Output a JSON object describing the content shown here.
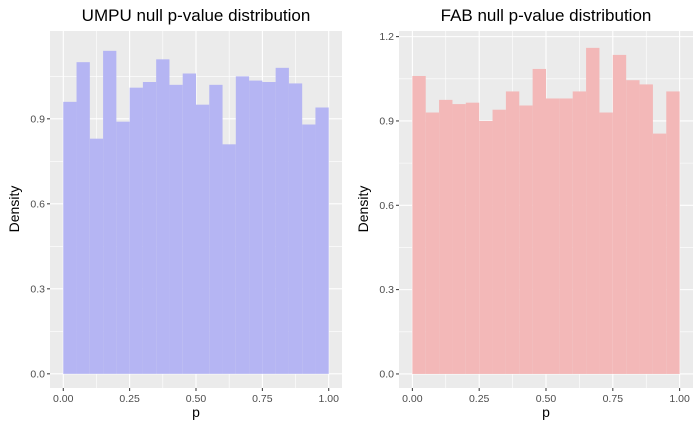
{
  "chart_data": [
    {
      "type": "bar",
      "subtype": "histogram",
      "title": "UMPU null p-value distribution",
      "xlabel": "p",
      "ylabel": "Density",
      "xlim": [
        -0.05,
        1.05
      ],
      "ylim": [
        -0.05,
        1.21
      ],
      "x_ticks": [
        "0.00",
        "0.25",
        "0.50",
        "0.75",
        "1.00"
      ],
      "y_ticks": [
        "0.0",
        "0.3",
        "0.6",
        "0.9"
      ],
      "bin_width": 0.05,
      "bins_start": 0.0,
      "values": [
        0.96,
        1.1,
        0.83,
        1.14,
        0.89,
        1.01,
        1.03,
        1.11,
        1.02,
        1.06,
        0.95,
        1.02,
        0.81,
        1.05,
        1.035,
        1.03,
        1.08,
        1.025,
        0.88,
        0.94
      ],
      "fill_color": "#b5b5f3",
      "panel_bg": "#ebebeb",
      "grid": true
    },
    {
      "type": "bar",
      "subtype": "histogram",
      "title": "FAB null p-value distribution",
      "xlabel": "p",
      "ylabel": "Density",
      "xlim": [
        -0.05,
        1.05
      ],
      "ylim": [
        -0.05,
        1.22
      ],
      "x_ticks": [
        "0.00",
        "0.25",
        "0.50",
        "0.75",
        "1.00"
      ],
      "y_ticks": [
        "0.0",
        "0.3",
        "0.6",
        "0.9",
        "1.2"
      ],
      "bin_width": 0.05,
      "bins_start": 0.0,
      "values": [
        1.06,
        0.93,
        0.975,
        0.96,
        0.965,
        0.9,
        0.94,
        1.005,
        0.955,
        1.085,
        0.98,
        0.98,
        1.005,
        1.16,
        0.93,
        1.135,
        1.045,
        1.03,
        0.855,
        1.005
      ],
      "fill_color": "#f3b8b8",
      "panel_bg": "#ebebeb",
      "grid": true
    }
  ]
}
